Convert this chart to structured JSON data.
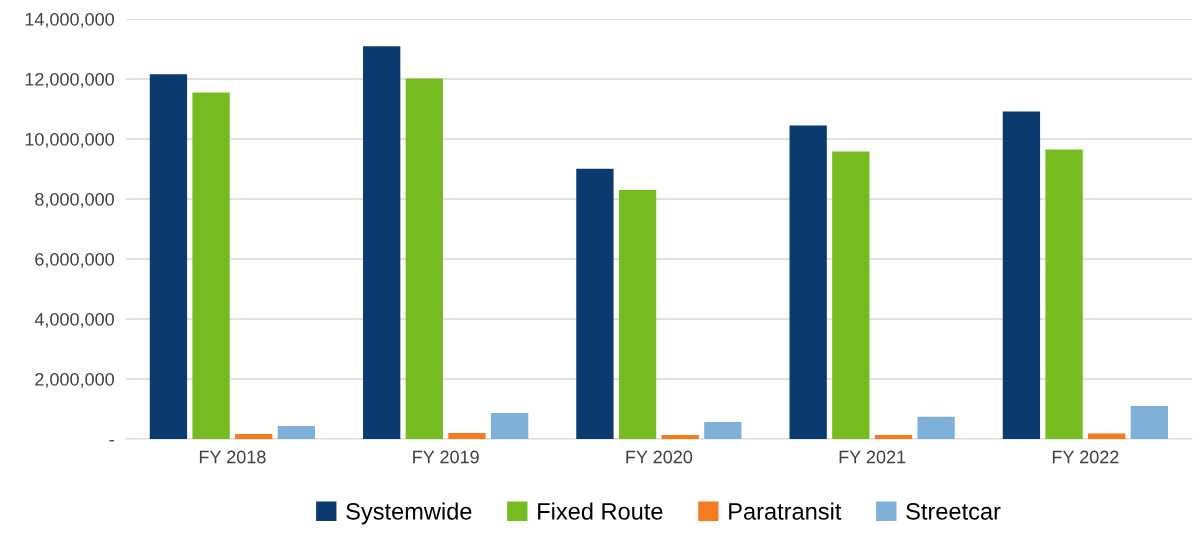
{
  "chart_data": {
    "type": "bar",
    "categories": [
      "FY 2018",
      "FY 2019",
      "FY 2020",
      "FY 2021",
      "FY 2022"
    ],
    "series": [
      {
        "name": "Systemwide",
        "color": "#0b3a6e",
        "values": [
          12160000,
          13090000,
          9010000,
          10450000,
          10920000
        ]
      },
      {
        "name": "Fixed Route",
        "color": "#76bc21",
        "values": [
          11550000,
          12020000,
          8300000,
          9580000,
          9650000
        ]
      },
      {
        "name": "Paratransit",
        "color": "#f47b20",
        "values": [
          170000,
          200000,
          130000,
          130000,
          180000
        ]
      },
      {
        "name": "Streetcar",
        "color": "#7fb0d8",
        "values": [
          430000,
          870000,
          570000,
          740000,
          1100000
        ]
      }
    ],
    "ylim": [
      0,
      14000000
    ],
    "yticks": [
      {
        "value": 0,
        "label": "-"
      },
      {
        "value": 2000000,
        "label": "2,000,000"
      },
      {
        "value": 4000000,
        "label": "4,000,000"
      },
      {
        "value": 6000000,
        "label": "6,000,000"
      },
      {
        "value": 8000000,
        "label": "8,000,000"
      },
      {
        "value": 10000000,
        "label": "10,000,000"
      },
      {
        "value": 12000000,
        "label": "12,000,000"
      },
      {
        "value": 14000000,
        "label": "14,000,000"
      }
    ],
    "grid": "y",
    "legend": "bottom"
  }
}
